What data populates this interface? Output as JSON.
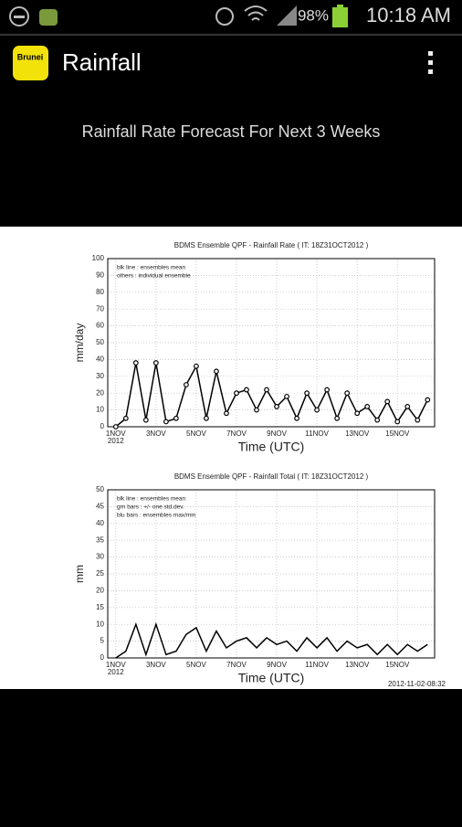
{
  "status_bar": {
    "battery": "98%",
    "time": "10:18 AM"
  },
  "app_bar": {
    "icon_label": "Brunei",
    "title": "Rainfall"
  },
  "heading": "Rainfall Rate Forecast For Next 3 Weeks",
  "charts": [
    {
      "type": "line",
      "title": "BDMS Ensemble QPF - Rainfall Rate ( IT: 18Z31OCT2012 )",
      "notes": [
        "blk line : ensembles mean",
        "others : individual ensemble"
      ],
      "ylabel": "mm/day",
      "xlabel": "Time (UTC)",
      "x_sublabel": "2012",
      "xlim": [
        -0.4,
        15.85
      ],
      "ylim": [
        0,
        100
      ],
      "yticks": [
        0,
        10,
        20,
        30,
        40,
        50,
        60,
        70,
        80,
        90,
        100
      ],
      "xticks": [
        {
          "value": 0,
          "label": "1NOV"
        },
        {
          "value": 2,
          "label": "3NOV"
        },
        {
          "value": 4,
          "label": "5NOV"
        },
        {
          "value": 6,
          "label": "7NOV"
        },
        {
          "value": 8,
          "label": "9NOV"
        },
        {
          "value": 10,
          "label": "11NOV"
        },
        {
          "value": 12,
          "label": "13NOV"
        },
        {
          "value": 14,
          "label": "15NOV"
        }
      ],
      "grid": true,
      "markers": true,
      "series": [
        {
          "name": "ensembles mean",
          "color": "#000000",
          "x": [
            0,
            0.5,
            1,
            1.5,
            2,
            2.5,
            3,
            3.5,
            4,
            4.5,
            5,
            5.5,
            6,
            6.5,
            7,
            7.5,
            8,
            8.5,
            9,
            9.5,
            10,
            10.5,
            11,
            11.5,
            12,
            12.5,
            13,
            13.5,
            14,
            14.5,
            15,
            15.5
          ],
          "values": [
            0,
            5,
            38,
            4,
            38,
            3,
            5,
            25,
            36,
            5,
            33,
            8,
            20,
            22,
            10,
            22,
            12,
            18,
            5,
            20,
            10,
            22,
            5,
            20,
            8,
            12,
            4,
            15,
            3,
            12,
            4,
            16
          ]
        }
      ]
    },
    {
      "type": "line",
      "title": "BDMS Ensemble QPF - Rainfall Total ( IT: 18Z31OCT2012 )",
      "notes": [
        "blk line : ensembles mean",
        "grn bars : +/- one std.dev.",
        "blu bars : ensembles max/min"
      ],
      "ylabel": "mm",
      "xlabel": "Time (UTC)",
      "x_sublabel": "2012",
      "xlim": [
        -0.4,
        15.85
      ],
      "ylim": [
        0,
        50
      ],
      "yticks": [
        0,
        5,
        10,
        15,
        20,
        25,
        30,
        35,
        40,
        45,
        50
      ],
      "xticks": [
        {
          "value": 0,
          "label": "1NOV"
        },
        {
          "value": 2,
          "label": "3NOV"
        },
        {
          "value": 4,
          "label": "5NOV"
        },
        {
          "value": 6,
          "label": "7NOV"
        },
        {
          "value": 8,
          "label": "9NOV"
        },
        {
          "value": 10,
          "label": "11NOV"
        },
        {
          "value": 12,
          "label": "13NOV"
        },
        {
          "value": 14,
          "label": "15NOV"
        }
      ],
      "grid": true,
      "markers": false,
      "series": [
        {
          "name": "ensembles mean",
          "color": "#000000",
          "x": [
            0,
            0.5,
            1,
            1.5,
            2,
            2.5,
            3,
            3.5,
            4,
            4.5,
            5,
            5.5,
            6,
            6.5,
            7,
            7.5,
            8,
            8.5,
            9,
            9.5,
            10,
            10.5,
            11,
            11.5,
            12,
            12.5,
            13,
            13.5,
            14,
            14.5,
            15,
            15.5
          ],
          "values": [
            0,
            2,
            10,
            1,
            10,
            1,
            2,
            7,
            9,
            2,
            8,
            3,
            5,
            6,
            3,
            6,
            4,
            5,
            2,
            6,
            3,
            6,
            2,
            5,
            3,
            4,
            1,
            4,
            1,
            4,
            2,
            4
          ]
        }
      ],
      "timestamp": "2012-11-02-08:32"
    }
  ]
}
